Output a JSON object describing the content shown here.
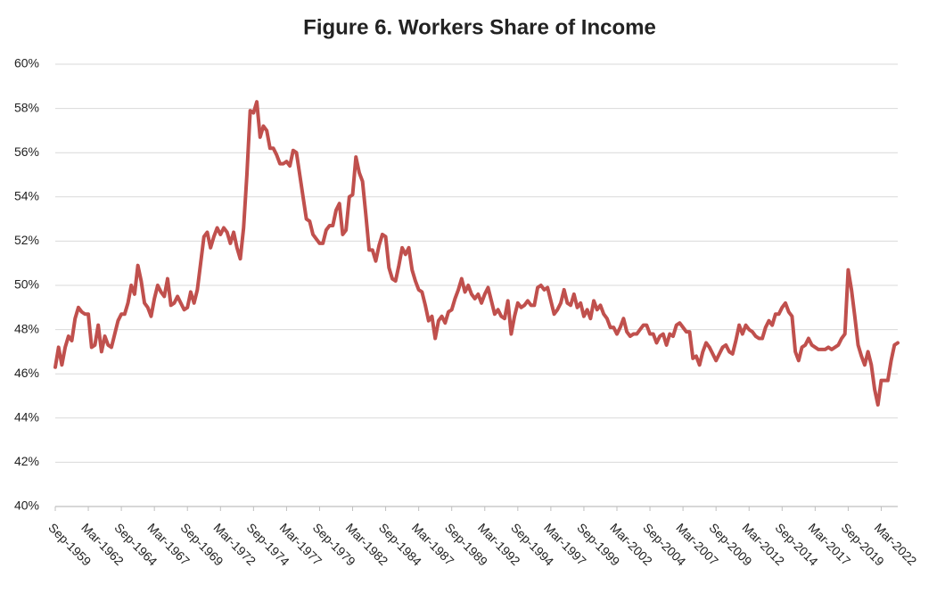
{
  "chart_data": {
    "type": "line",
    "title": "Figure 6. Workers Share of Income",
    "categories": [
      "Sep-1959",
      null,
      null,
      null,
      null,
      null,
      null,
      null,
      null,
      null,
      "Mar-1962",
      null,
      null,
      null,
      null,
      null,
      null,
      null,
      null,
      null,
      "Sep-1964",
      null,
      null,
      null,
      null,
      null,
      null,
      null,
      null,
      null,
      "Mar-1967",
      null,
      null,
      null,
      null,
      null,
      null,
      null,
      null,
      null,
      "Sep-1969",
      null,
      null,
      null,
      null,
      null,
      null,
      null,
      null,
      null,
      "Mar-1972",
      null,
      null,
      null,
      null,
      null,
      null,
      null,
      null,
      null,
      "Sep-1974",
      null,
      null,
      null,
      null,
      null,
      null,
      null,
      null,
      null,
      "Mar-1977",
      null,
      null,
      null,
      null,
      null,
      null,
      null,
      null,
      null,
      "Sep-1979",
      null,
      null,
      null,
      null,
      null,
      null,
      null,
      null,
      null,
      "Mar-1982",
      null,
      null,
      null,
      null,
      null,
      null,
      null,
      null,
      null,
      "Sep-1984",
      null,
      null,
      null,
      null,
      null,
      null,
      null,
      null,
      null,
      "Mar-1987",
      null,
      null,
      null,
      null,
      null,
      null,
      null,
      null,
      null,
      "Sep-1989",
      null,
      null,
      null,
      null,
      null,
      null,
      null,
      null,
      null,
      "Mar-1992",
      null,
      null,
      null,
      null,
      null,
      null,
      null,
      null,
      null,
      "Sep-1994",
      null,
      null,
      null,
      null,
      null,
      null,
      null,
      null,
      null,
      "Mar-1997",
      null,
      null,
      null,
      null,
      null,
      null,
      null,
      null,
      null,
      "Sep-1999",
      null,
      null,
      null,
      null,
      null,
      null,
      null,
      null,
      null,
      "Mar-2002",
      null,
      null,
      null,
      null,
      null,
      null,
      null,
      null,
      null,
      "Sep-2004",
      null,
      null,
      null,
      null,
      null,
      null,
      null,
      null,
      null,
      "Mar-2007",
      null,
      null,
      null,
      null,
      null,
      null,
      null,
      null,
      null,
      "Sep-2009",
      null,
      null,
      null,
      null,
      null,
      null,
      null,
      null,
      null,
      "Mar-2012",
      null,
      null,
      null,
      null,
      null,
      null,
      null,
      null,
      null,
      "Sep-2014",
      null,
      null,
      null,
      null,
      null,
      null,
      null,
      null,
      null,
      "Mar-2017",
      null,
      null,
      null,
      null,
      null,
      null,
      null,
      null,
      null,
      "Sep-2019",
      null,
      null,
      null,
      null,
      null,
      null,
      null,
      null,
      null,
      "Mar-2022",
      null,
      null,
      null,
      null,
      null
    ],
    "values": [
      46.3,
      47.2,
      46.4,
      47.2,
      47.7,
      47.5,
      48.5,
      49.0,
      48.8,
      48.7,
      48.7,
      47.2,
      47.3,
      48.2,
      47.0,
      47.7,
      47.3,
      47.2,
      47.8,
      48.4,
      48.7,
      48.7,
      49.2,
      50.0,
      49.6,
      50.9,
      50.2,
      49.2,
      49.0,
      48.6,
      49.4,
      50.0,
      49.7,
      49.5,
      50.3,
      49.1,
      49.2,
      49.5,
      49.2,
      48.9,
      49.0,
      49.7,
      49.2,
      49.8,
      51.0,
      52.2,
      52.4,
      51.7,
      52.2,
      52.6,
      52.3,
      52.6,
      52.4,
      51.9,
      52.4,
      51.7,
      51.2,
      52.6,
      55.0,
      57.9,
      57.8,
      58.3,
      56.7,
      57.2,
      57.0,
      56.2,
      56.2,
      55.9,
      55.5,
      55.5,
      55.6,
      55.4,
      56.1,
      56.0,
      55.0,
      54.0,
      53.0,
      52.9,
      52.3,
      52.1,
      51.9,
      51.9,
      52.5,
      52.7,
      52.7,
      53.4,
      53.7,
      52.3,
      52.5,
      54.0,
      54.1,
      55.8,
      55.1,
      54.7,
      53.2,
      51.6,
      51.6,
      51.1,
      51.8,
      52.3,
      52.2,
      50.8,
      50.3,
      50.2,
      50.9,
      51.7,
      51.4,
      51.7,
      50.7,
      50.2,
      49.8,
      49.7,
      49.1,
      48.4,
      48.6,
      47.6,
      48.4,
      48.6,
      48.3,
      48.8,
      48.9,
      49.4,
      49.8,
      50.3,
      49.7,
      50.0,
      49.6,
      49.4,
      49.6,
      49.2,
      49.6,
      49.9,
      49.3,
      48.7,
      48.9,
      48.6,
      48.5,
      49.3,
      47.8,
      48.6,
      49.2,
      49.0,
      49.1,
      49.3,
      49.1,
      49.1,
      49.9,
      50.0,
      49.8,
      49.9,
      49.3,
      48.7,
      48.9,
      49.2,
      49.8,
      49.2,
      49.1,
      49.6,
      49.0,
      49.2,
      48.6,
      48.9,
      48.5,
      49.3,
      48.9,
      49.1,
      48.7,
      48.5,
      48.1,
      48.1,
      47.8,
      48.1,
      48.5,
      47.9,
      47.7,
      47.8,
      47.8,
      48.0,
      48.2,
      48.2,
      47.8,
      47.8,
      47.4,
      47.7,
      47.8,
      47.3,
      47.8,
      47.7,
      48.2,
      48.3,
      48.1,
      47.9,
      47.9,
      46.7,
      46.8,
      46.4,
      47.0,
      47.4,
      47.2,
      46.9,
      46.6,
      46.9,
      47.2,
      47.3,
      47.0,
      46.9,
      47.5,
      48.2,
      47.8,
      48.2,
      48.0,
      47.9,
      47.7,
      47.6,
      47.6,
      48.1,
      48.4,
      48.2,
      48.7,
      48.7,
      49.0,
      49.2,
      48.8,
      48.6,
      47.0,
      46.6,
      47.2,
      47.3,
      47.6,
      47.3,
      47.2,
      47.1,
      47.1,
      47.1,
      47.2,
      47.1,
      47.2,
      47.3,
      47.6,
      47.8,
      50.7,
      49.8,
      48.6,
      47.3,
      46.8,
      46.4,
      47.0,
      46.4,
      45.3,
      44.6,
      45.7,
      45.7,
      45.7,
      46.6,
      47.3,
      47.4
    ],
    "color": "#c0504d",
    "ylim": [
      40,
      60
    ],
    "yticks": [
      {
        "value": 40,
        "label": "40%"
      },
      {
        "value": 42,
        "label": "42%"
      },
      {
        "value": 44,
        "label": "44%"
      },
      {
        "value": 46,
        "label": "46%"
      },
      {
        "value": 48,
        "label": "48%"
      },
      {
        "value": 50,
        "label": "50%"
      },
      {
        "value": 52,
        "label": "52%"
      },
      {
        "value": 54,
        "label": "54%"
      },
      {
        "value": 56,
        "label": "56%"
      },
      {
        "value": 58,
        "label": "58%"
      },
      {
        "value": 60,
        "label": "60%"
      }
    ],
    "grid": true
  }
}
